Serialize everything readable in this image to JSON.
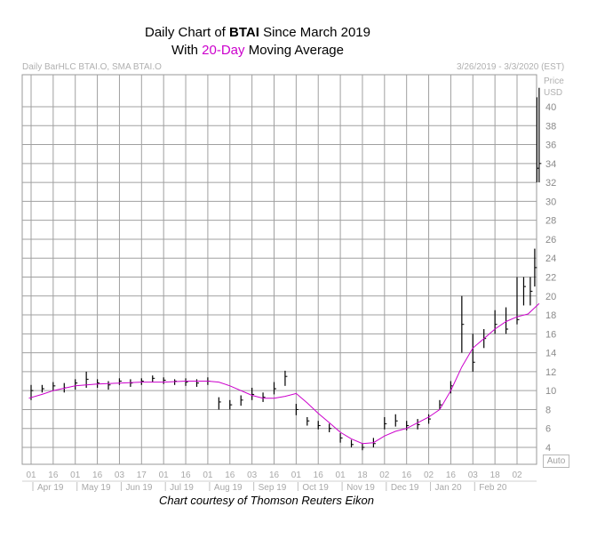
{
  "title": {
    "line1_prefix": "Daily Chart of ",
    "ticker": "BTAI",
    "line1_suffix": " Since March 2019",
    "line2_prefix": "With ",
    "line2_accent": "20-Day",
    "line2_suffix": " Moving Average"
  },
  "subtitle_left": "Daily BarHLC BTAI.O, SMA BTAI.O",
  "subtitle_right": "3/26/2019 - 3/3/2020 (EST)",
  "price_label": "Price",
  "currency_label": "USD",
  "auto_button": "Auto",
  "credit": "Chart courtesy of Thomson Reuters Eikon",
  "colors": {
    "price_bars": "#000000",
    "sma": "#cc00cc",
    "grid": "#a0a0a0",
    "labels": "#a8a8a8"
  },
  "chart_data": {
    "type": "line",
    "title": "Daily Chart of BTAI Since March 2019 With 20-Day Moving Average",
    "ylabel": "Price USD",
    "ylim": [
      2.5,
      43
    ],
    "yticks": [
      4,
      6,
      8,
      10,
      12,
      14,
      16,
      18,
      20,
      22,
      24,
      26,
      28,
      30,
      32,
      34,
      36,
      38,
      40
    ],
    "x_day_ticks": [
      "01",
      "16",
      "01",
      "16",
      "03",
      "17",
      "01",
      "16",
      "01",
      "16",
      "03",
      "16",
      "01",
      "16",
      "01",
      "18",
      "02",
      "16",
      "02",
      "16",
      "03",
      "18",
      "02"
    ],
    "month_labels": [
      "Apr 19",
      "May 19",
      "Jun 19",
      "Jul 19",
      "Aug 19",
      "Sep 19",
      "Oct 19",
      "Nov 19",
      "Dec 19",
      "Jan 20",
      "Feb 20"
    ],
    "x_index_range": [
      0,
      23.2
    ],
    "series": [
      {
        "name": "BTAI.O daily close (approx.)",
        "style": "bars",
        "x": [
          0.0,
          0.5,
          1.0,
          1.5,
          2.0,
          2.5,
          3.0,
          3.5,
          4.0,
          4.5,
          5.0,
          5.5,
          6.0,
          6.5,
          7.0,
          7.5,
          8.0,
          8.5,
          9.0,
          9.5,
          10.0,
          10.5,
          11.0,
          11.5,
          12.0,
          12.5,
          13.0,
          13.5,
          14.0,
          14.5,
          15.0,
          15.5,
          16.0,
          16.5,
          17.0,
          17.5,
          18.0,
          18.5,
          19.0,
          19.5,
          20.0,
          20.5,
          21.0,
          21.5,
          22.0,
          22.3,
          22.6,
          22.8,
          22.9,
          23.0
        ],
        "close": [
          10.0,
          10.2,
          10.5,
          10.3,
          10.8,
          11.2,
          10.8,
          10.6,
          11.0,
          10.8,
          11.0,
          11.3,
          11.1,
          11.0,
          10.9,
          10.8,
          11.0,
          8.8,
          8.5,
          9.0,
          9.6,
          9.3,
          10.2,
          11.5,
          8.0,
          6.8,
          6.3,
          6.0,
          5.0,
          4.3,
          4.0,
          4.4,
          6.5,
          6.8,
          6.3,
          6.4,
          7.0,
          8.5,
          10.5,
          17.0,
          13.0,
          15.5,
          17.0,
          16.5,
          17.5,
          21.0,
          20.5,
          23.0,
          33.5,
          34.0
        ],
        "high": [
          10.6,
          10.6,
          10.9,
          10.8,
          11.2,
          12.0,
          11.2,
          11.0,
          11.3,
          11.2,
          11.3,
          11.6,
          11.4,
          11.2,
          11.3,
          11.2,
          11.4,
          9.3,
          9.0,
          9.5,
          10.3,
          9.8,
          10.9,
          12.1,
          8.6,
          7.2,
          6.8,
          6.5,
          5.5,
          4.8,
          4.4,
          5.0,
          7.2,
          7.5,
          6.8,
          7.0,
          7.5,
          9.0,
          11.0,
          20.0,
          16.0,
          16.5,
          18.5,
          18.8,
          22.0,
          22.0,
          22.0,
          25.0,
          41.0,
          42.0
        ],
        "low": [
          9.0,
          9.8,
          10.0,
          9.8,
          10.1,
          10.3,
          10.3,
          10.1,
          10.6,
          10.4,
          10.6,
          10.9,
          10.7,
          10.6,
          10.5,
          10.4,
          10.6,
          8.0,
          8.0,
          8.4,
          9.0,
          8.8,
          9.6,
          10.5,
          7.4,
          6.3,
          5.9,
          5.6,
          4.5,
          4.0,
          3.7,
          4.0,
          5.9,
          6.2,
          5.8,
          5.9,
          6.5,
          8.0,
          9.7,
          14.0,
          12.0,
          14.5,
          16.0,
          16.0,
          17.0,
          19.0,
          19.0,
          21.0,
          32.0,
          32.0
        ]
      },
      {
        "name": "SMA 20-Day",
        "style": "line",
        "x": [
          -0.1,
          0.5,
          1.0,
          2.0,
          3.0,
          4.0,
          5.0,
          6.0,
          7.0,
          8.0,
          8.5,
          9.0,
          10.0,
          10.5,
          11.0,
          11.5,
          12.0,
          12.5,
          13.0,
          13.5,
          14.0,
          14.5,
          15.0,
          15.5,
          16.0,
          16.5,
          17.0,
          17.5,
          18.0,
          18.5,
          19.0,
          19.5,
          20.0,
          20.5,
          21.0,
          21.5,
          22.0,
          22.5,
          23.0
        ],
        "values": [
          9.2,
          9.6,
          10.0,
          10.5,
          10.7,
          10.8,
          10.9,
          10.9,
          11.0,
          11.0,
          10.9,
          10.5,
          9.5,
          9.2,
          9.2,
          9.4,
          9.7,
          8.7,
          7.6,
          6.6,
          5.6,
          4.9,
          4.4,
          4.5,
          5.2,
          5.7,
          6.0,
          6.6,
          7.2,
          8.0,
          10.0,
          12.5,
          14.5,
          15.5,
          16.5,
          17.3,
          17.8,
          18.1,
          19.2
        ]
      }
    ]
  }
}
